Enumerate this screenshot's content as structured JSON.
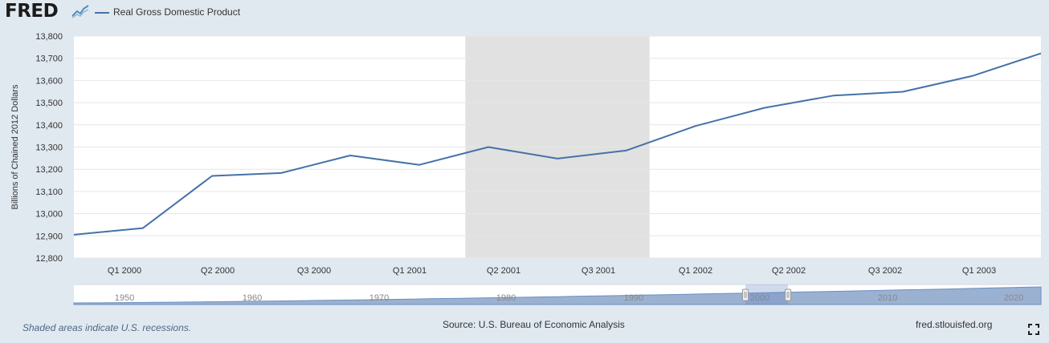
{
  "header": {
    "logo_text": "FRED",
    "logo_icon": "fred-graph-icon",
    "legend_label": "Real Gross Domestic Product",
    "series_color": "#4572a7"
  },
  "footer": {
    "recession_note": "Shaded areas indicate U.S. recessions.",
    "source": "Source: U.S. Bureau of Economic Analysis",
    "url": "fred.stlouisfed.org",
    "fullscreen_icon": "fullscreen-icon"
  },
  "navigator": {
    "year_labels": [
      "1950",
      "1960",
      "1970",
      "1980",
      "1990",
      "2000",
      "2010",
      "2020"
    ]
  },
  "chart_data": {
    "type": "line",
    "ylabel": "Billions of Chained 2012 Dollars",
    "ylim": [
      12800,
      13800
    ],
    "yticks": [
      "12,800",
      "12,900",
      "13,000",
      "13,100",
      "13,200",
      "13,300",
      "13,400",
      "13,500",
      "13,600",
      "13,700",
      "13,800"
    ],
    "xtick_labels": [
      "Q1 2000",
      "Q2 2000",
      "Q3 2000",
      "Q1 2001",
      "Q2 2001",
      "Q3 2001",
      "Q1 2002",
      "Q2 2002",
      "Q3 2002",
      "Q1 2003"
    ],
    "grid": true,
    "recession": {
      "start": "2001-03",
      "end": "2001-11",
      "color": "#e1e1e1"
    },
    "series": [
      {
        "name": "Real Gross Domestic Product",
        "x": [
          "1999-10",
          "2000-01",
          "2000-04",
          "2000-07",
          "2000-10",
          "2001-01",
          "2001-04",
          "2001-07",
          "2001-10",
          "2002-01",
          "2002-04",
          "2002-07",
          "2002-10",
          "2003-01",
          "2003-04"
        ],
        "values": [
          12905,
          12935,
          13170,
          13183,
          13262,
          13220,
          13300,
          13248,
          13285,
          13395,
          13477,
          13532,
          13549,
          13620,
          13722
        ]
      }
    ]
  }
}
